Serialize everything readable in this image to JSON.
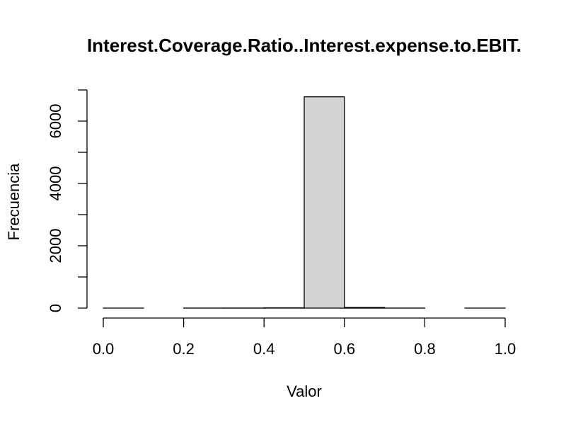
{
  "chart_data": {
    "type": "bar",
    "title": "Interest.Coverage.Ratio..Interest.expense.to.EBIT.",
    "xlabel": "Valor",
    "ylabel": "Frecuencia",
    "bins": [
      {
        "start": 0.0,
        "end": 0.1,
        "count": 1
      },
      {
        "start": 0.1,
        "end": 0.2,
        "count": 0
      },
      {
        "start": 0.2,
        "end": 0.3,
        "count": 2
      },
      {
        "start": 0.3,
        "end": 0.4,
        "count": 3
      },
      {
        "start": 0.4,
        "end": 0.5,
        "count": 10
      },
      {
        "start": 0.5,
        "end": 0.6,
        "count": 6780
      },
      {
        "start": 0.6,
        "end": 0.7,
        "count": 22
      },
      {
        "start": 0.7,
        "end": 0.8,
        "count": 2
      },
      {
        "start": 0.8,
        "end": 0.9,
        "count": 0
      },
      {
        "start": 0.9,
        "end": 1.0,
        "count": 1
      }
    ],
    "x_ticks": [
      "0.0",
      "0.2",
      "0.4",
      "0.6",
      "0.8",
      "1.0"
    ],
    "x_tick_values": [
      0.0,
      0.2,
      0.4,
      0.6,
      0.8,
      1.0
    ],
    "y_ticks": [
      "0",
      "2000",
      "4000",
      "6000"
    ],
    "y_tick_values": [
      0,
      2000,
      4000,
      6000
    ],
    "y_minor_tick_values": [
      0,
      1000,
      2000,
      3000,
      4000,
      5000,
      6000,
      7000
    ],
    "xlim": [
      0.0,
      1.0
    ],
    "ylim": [
      0,
      7000
    ],
    "bar_color": "#d3d3d3",
    "edge_color": "#000000",
    "grid": false,
    "legend": "none"
  }
}
